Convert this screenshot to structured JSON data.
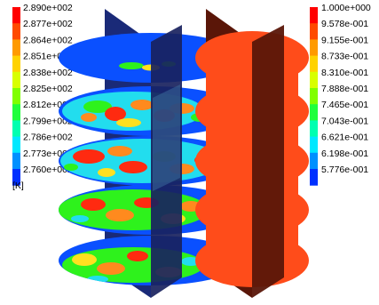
{
  "left_legend": {
    "unit": "[K]",
    "labels": [
      "2.890e+002",
      "2.877e+002",
      "2.864e+002",
      "2.851e+002",
      "2.838e+002",
      "2.825e+002",
      "2.812e+002",
      "2.799e+002",
      "2.786e+002",
      "2.773e+002",
      "2.760e+002"
    ],
    "colors": [
      "#ff0000",
      "#ff4a00",
      "#ff9a00",
      "#ffd200",
      "#d8ff00",
      "#80ff00",
      "#20ff3c",
      "#00ffb0",
      "#00e8ff",
      "#0090ff",
      "#0030ff"
    ]
  },
  "right_legend": {
    "labels": [
      "1.000e+000",
      "9.578e-001",
      "9.155e-001",
      "8.733e-001",
      "8.310e-001",
      "7.888e-001",
      "7.465e-001",
      "7.043e-001",
      "6.621e-001",
      "6.198e-001",
      "5.776e-001"
    ],
    "colors": [
      "#ff0000",
      "#ff4a00",
      "#ff9a00",
      "#ffd200",
      "#d8ff00",
      "#80ff00",
      "#20ff3c",
      "#00ffb0",
      "#00e8ff",
      "#0090ff",
      "#0030ff"
    ]
  },
  "colors": {
    "disc_blue": "#0a50ff",
    "panel_navy": "#1a2a78",
    "panel_dark": "#19225e",
    "mix_cyan": "#22ddee",
    "mix_green": "#2ef21c",
    "hot_red": "#ff2a10",
    "warm_orange": "#ff8a1e",
    "yellow": "#ffe020",
    "vol_orange": "#ff4c1a",
    "vol_dark": "#5a1608"
  }
}
